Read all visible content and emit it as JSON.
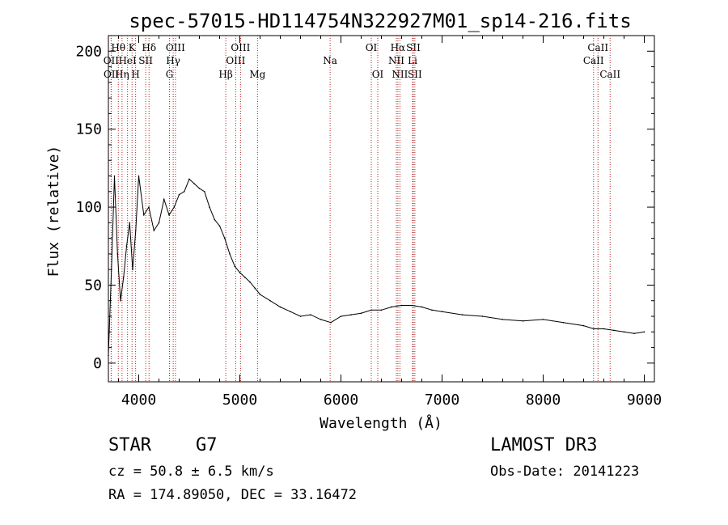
{
  "chart_data": {
    "type": "line",
    "title": "spec-57015-HD114754N322927M01_sp14-216.fits",
    "xlabel": "Wavelength (Å)",
    "ylabel": "Flux (relative)",
    "xlim": [
      3700,
      9100
    ],
    "ylim": [
      -12,
      210
    ],
    "xticks": [
      "4000",
      "5000",
      "6000",
      "7000",
      "8000",
      "9000"
    ],
    "yticks": [
      "0",
      "50",
      "100",
      "150",
      "200"
    ],
    "xtick_values": [
      4000,
      5000,
      6000,
      7000,
      8000,
      9000
    ],
    "ytick_values": [
      0,
      50,
      100,
      150,
      200
    ],
    "series": [
      {
        "name": "spectrum",
        "x": [
          3700,
          3730,
          3760,
          3790,
          3820,
          3850,
          3880,
          3910,
          3940,
          3970,
          4000,
          4050,
          4100,
          4150,
          4200,
          4250,
          4300,
          4350,
          4400,
          4450,
          4500,
          4550,
          4600,
          4650,
          4700,
          4750,
          4800,
          4850,
          4900,
          4950,
          5000,
          5050,
          5100,
          5150,
          5200,
          5300,
          5400,
          5500,
          5600,
          5700,
          5800,
          5900,
          6000,
          6100,
          6200,
          6300,
          6400,
          6500,
          6600,
          6700,
          6800,
          6900,
          7000,
          7200,
          7400,
          7600,
          7800,
          8000,
          8200,
          8400,
          8500,
          8600,
          8700,
          8800,
          8900,
          9000
        ],
        "y": [
          5,
          60,
          120,
          70,
          40,
          55,
          75,
          90,
          60,
          85,
          120,
          95,
          100,
          85,
          90,
          105,
          95,
          100,
          108,
          110,
          118,
          115,
          112,
          110,
          100,
          92,
          88,
          80,
          70,
          62,
          58,
          55,
          52,
          48,
          44,
          40,
          36,
          33,
          30,
          31,
          28,
          26,
          30,
          31,
          32,
          34,
          34,
          36,
          37,
          37,
          36,
          34,
          33,
          31,
          30,
          28,
          27,
          28,
          26,
          24,
          22,
          22,
          21,
          20,
          19,
          20
        ]
      }
    ],
    "lines": [
      {
        "label": "Hθ",
        "x": 3798,
        "row": 1
      },
      {
        "label": "OII",
        "x": 3727,
        "row": 2
      },
      {
        "label": "OII",
        "x": 3729,
        "row": 3
      },
      {
        "label": "Hη",
        "x": 3835,
        "row": 3
      },
      {
        "label": "HeI",
        "x": 3889,
        "row": 2
      },
      {
        "label": "K",
        "x": 3934,
        "row": 1
      },
      {
        "label": "H",
        "x": 3969,
        "row": 3
      },
      {
        "label": "SII",
        "x": 4069,
        "row": 2
      },
      {
        "label": "Hδ",
        "x": 4102,
        "row": 1
      },
      {
        "label": "OIII",
        "x": 4363,
        "row": 1
      },
      {
        "label": "Hγ",
        "x": 4341,
        "row": 2
      },
      {
        "label": "G",
        "x": 4304,
        "row": 3
      },
      {
        "label": "Hβ",
        "x": 4861,
        "row": 3
      },
      {
        "label": "OIII",
        "x": 4959,
        "row": 2
      },
      {
        "label": "OIII",
        "x": 5007,
        "row": 1
      },
      {
        "label": "Mg",
        "x": 5175,
        "row": 3
      },
      {
        "label": "Na",
        "x": 5893,
        "row": 2
      },
      {
        "label": "OI",
        "x": 6300,
        "row": 1
      },
      {
        "label": "OI",
        "x": 6364,
        "row": 3
      },
      {
        "label": "Hα",
        "x": 6563,
        "row": 1
      },
      {
        "label": "NII",
        "x": 6548,
        "row": 2
      },
      {
        "label": "NII",
        "x": 6583,
        "row": 3
      },
      {
        "label": "SII",
        "x": 6716,
        "row": 1
      },
      {
        "label": "Li",
        "x": 6708,
        "row": 2
      },
      {
        "label": "SII",
        "x": 6731,
        "row": 3
      },
      {
        "label": "CaII",
        "x": 8542,
        "row": 1
      },
      {
        "label": "CaII",
        "x": 8498,
        "row": 2
      },
      {
        "label": "CaII",
        "x": 8662,
        "row": 3
      }
    ]
  },
  "info": {
    "object_class": "STAR",
    "subclass": "G7",
    "survey": "LAMOST DR3",
    "redshift": "cz = 50.8 ± 6.5 km/s",
    "obs_date": "Obs-Date: 20141223",
    "coords": "RA = 174.89050, DEC =  33.16472"
  },
  "colors": {
    "spectrum": "#000000",
    "line_marker": "#b22222"
  }
}
